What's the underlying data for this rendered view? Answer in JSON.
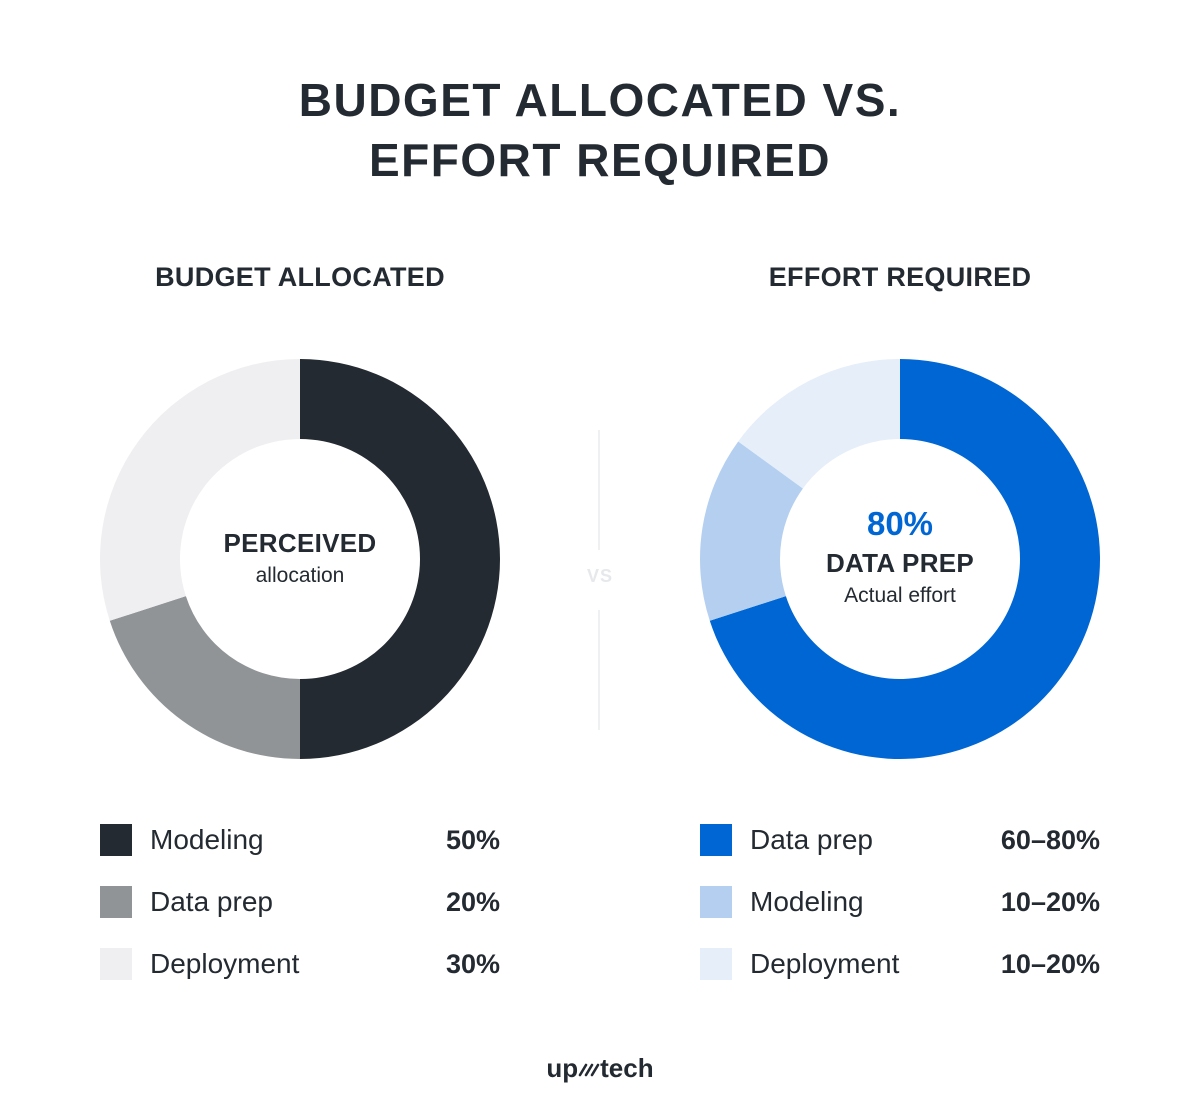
{
  "title": {
    "line1": "BUDGET ALLOCATED VS.",
    "line2": "EFFORT REQUIRED"
  },
  "separator_label": "VS",
  "logo": {
    "left": "up",
    "right": "tech"
  },
  "chart_data": [
    {
      "type": "pie",
      "title": "BUDGET ALLOCATED",
      "center": {
        "main": "PERCEIVED",
        "sub": "allocation"
      },
      "slices": [
        {
          "label": "Modeling",
          "value": 50,
          "display": "50%",
          "color": "#232a31"
        },
        {
          "label": "Data prep",
          "value": 20,
          "display": "20%",
          "color": "#909497"
        },
        {
          "label": "Deployment",
          "value": 30,
          "display": "30%",
          "color": "#efeff1"
        }
      ]
    },
    {
      "type": "pie",
      "title": "EFFORT REQUIRED",
      "center": {
        "big": "80%",
        "main": "DATA PREP",
        "sub": "Actual effort"
      },
      "slices": [
        {
          "label": "Data prep",
          "value": 70,
          "display": "60–80%",
          "color": "#0066d3"
        },
        {
          "label": "Modeling",
          "value": 15,
          "display": "10–20%",
          "color": "#b4cff0"
        },
        {
          "label": "Deployment",
          "value": 15,
          "display": "10–20%",
          "color": "#e5eef9"
        }
      ]
    }
  ]
}
